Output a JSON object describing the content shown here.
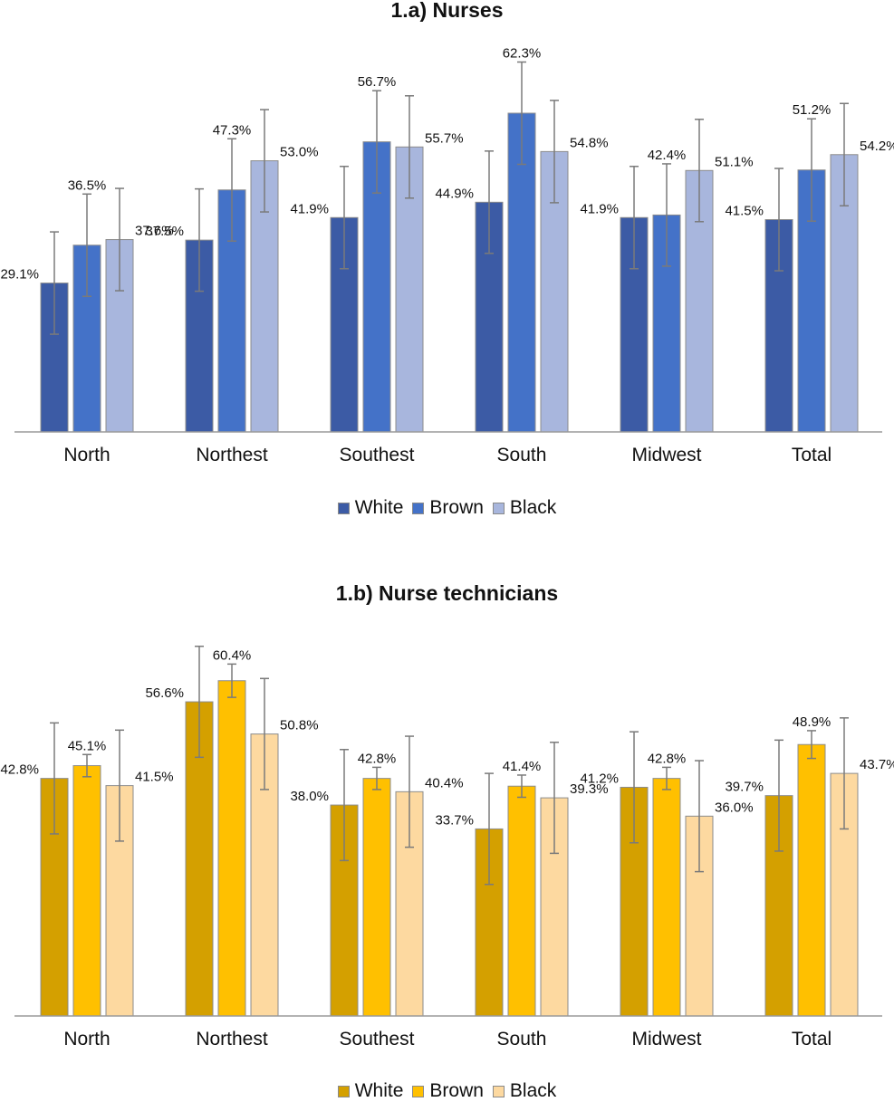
{
  "chart_data": [
    {
      "type": "bar",
      "title": "1.a) Nurses",
      "categories": [
        "North",
        "Northest",
        "Southest",
        "South",
        "Midwest",
        "Total"
      ],
      "series": [
        {
          "name": "White",
          "color": "#3c5ba5",
          "values": [
            29.1,
            37.5,
            41.9,
            44.9,
            41.9,
            41.5
          ],
          "labels": [
            "29.1%",
            "37.5%",
            "41.9%",
            "44.9%",
            "41.9%",
            "41.5%"
          ],
          "err": [
            10,
            10,
            10,
            10,
            10,
            10
          ]
        },
        {
          "name": "Brown",
          "color": "#4472c8",
          "values": [
            36.5,
            47.3,
            56.7,
            62.3,
            42.4,
            51.2
          ],
          "labels": [
            "36.5%",
            "47.3%",
            "56.7%",
            "62.3%",
            "42.4%",
            "51.2%"
          ],
          "err": [
            10,
            10,
            10,
            10,
            10,
            10
          ]
        },
        {
          "name": "Black",
          "color": "#a8b6dd",
          "values": [
            37.6,
            53.0,
            55.7,
            54.8,
            51.1,
            54.2
          ],
          "labels": [
            "37.6%",
            "53.0%",
            "55.7%",
            "54.8%",
            "51.1%",
            "54.2%"
          ],
          "err": [
            10,
            10,
            10,
            10,
            10,
            10
          ]
        }
      ],
      "ylim": [
        0,
        80
      ],
      "grid": false,
      "legend": "bottom"
    },
    {
      "type": "bar",
      "title": "1.b) Nurse technicians",
      "categories": [
        "North",
        "Northest",
        "Southest",
        "South",
        "Midwest",
        "Total"
      ],
      "series": [
        {
          "name": "White",
          "color": "#d4a000",
          "values": [
            42.8,
            56.6,
            38.0,
            33.7,
            41.2,
            39.7
          ],
          "labels": [
            "42.8%",
            "56.6%",
            "38.0%",
            "33.7%",
            "41.2%",
            "39.7%"
          ],
          "err": [
            10,
            10,
            10,
            10,
            10,
            10
          ]
        },
        {
          "name": "Brown",
          "color": "#ffc000",
          "values": [
            45.1,
            60.4,
            42.8,
            41.4,
            42.8,
            48.9
          ],
          "labels": [
            "45.1%",
            "60.4%",
            "42.8%",
            "41.4%",
            "42.8%",
            "48.9%"
          ],
          "err": [
            2,
            3,
            2,
            2,
            2,
            2.5
          ]
        },
        {
          "name": "Black",
          "color": "#fdd9a0",
          "values": [
            41.5,
            50.8,
            40.4,
            39.3,
            36.0,
            43.7
          ],
          "labels": [
            "41.5%",
            "50.8%",
            "40.4%",
            "39.3%",
            "36.0%",
            "43.7%"
          ],
          "err": [
            10,
            10,
            10,
            10,
            10,
            10
          ]
        }
      ],
      "ylim": [
        0,
        70
      ],
      "grid": false,
      "legend": "bottom"
    }
  ]
}
